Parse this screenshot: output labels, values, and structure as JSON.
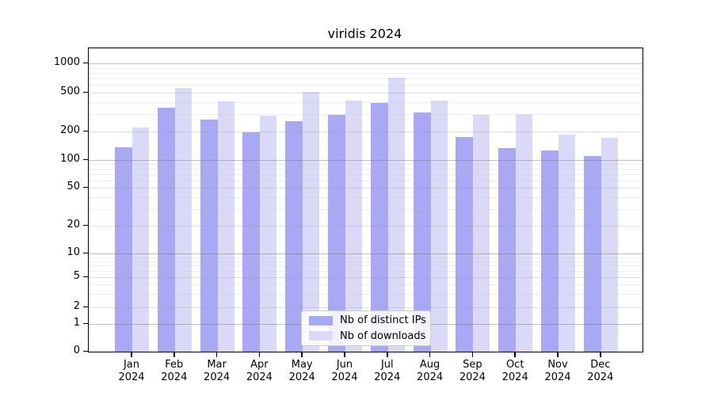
{
  "title": "viridis 2024",
  "colors": {
    "distinct_ips": "#a8a8f4",
    "downloads": "#dadaf8",
    "axis": "#000000",
    "grid_major": "#b8b8b8",
    "grid_minor": "#e9e9e9",
    "legend_border": "#cccccc",
    "background": "#ffffff"
  },
  "chart_data": {
    "type": "bar",
    "title": "viridis 2024",
    "xlabel": "",
    "ylabel": "",
    "scale": "symlog",
    "grid": true,
    "legend_position": "lower center",
    "categories": [
      "Jan 2024",
      "Feb 2024",
      "Mar 2024",
      "Apr 2024",
      "May 2024",
      "Jun 2024",
      "Jul 2024",
      "Aug 2024",
      "Sep 2024",
      "Oct 2024",
      "Nov 2024",
      "Dec 2024"
    ],
    "series": [
      {
        "name": "Nb of distinct IPs",
        "values": [
          135,
          350,
          265,
          195,
          255,
          295,
          395,
          315,
          175,
          133,
          125,
          110
        ]
      },
      {
        "name": "Nb of downloads",
        "values": [
          220,
          555,
          410,
          290,
          510,
          415,
          720,
          415,
          298,
          300,
          185,
          170
        ]
      }
    ],
    "yticks": [
      0,
      1,
      2,
      5,
      10,
      20,
      50,
      100,
      200,
      500,
      1000
    ],
    "ylim": [
      0,
      1430
    ]
  },
  "legend": {
    "items": [
      {
        "label": "Nb of distinct IPs"
      },
      {
        "label": "Nb of downloads"
      }
    ]
  }
}
